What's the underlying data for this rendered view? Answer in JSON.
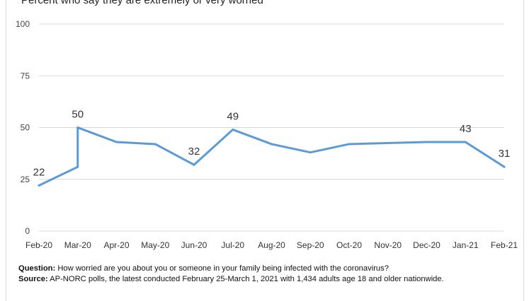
{
  "subtitle": "Percent who say they are extremely or very worried",
  "chart_data": {
    "type": "line",
    "title": "",
    "subtitle": "Percent who say they are extremely or very worried",
    "xlabel": "",
    "ylabel": "",
    "ylim": [
      0,
      100
    ],
    "yticks": [
      0,
      25,
      50,
      75,
      100
    ],
    "grid": true,
    "categories": [
      "Feb-20",
      "Mar-20",
      "Apr-20",
      "May-20",
      "Jun-20",
      "Jul-20",
      "Aug-20",
      "Sep-20",
      "Oct-20",
      "Nov-20",
      "Dec-20",
      "Jan-21",
      "Feb-21"
    ],
    "series": [
      {
        "name": "",
        "color": "#5b9bd5",
        "points": [
          {
            "x": "Feb-20",
            "y": 22
          },
          {
            "x": "Mar-20",
            "y": 31
          },
          {
            "x": "Mar-20",
            "y": 50
          },
          {
            "x": "Apr-20",
            "y": 43
          },
          {
            "x": "May-20",
            "y": 42
          },
          {
            "x": "Jun-20",
            "y": 32
          },
          {
            "x": "Jul-20",
            "y": 49
          },
          {
            "x": "Aug-20",
            "y": 42
          },
          {
            "x": "Sep-20",
            "y": 38
          },
          {
            "x": "Oct-20",
            "y": 42
          },
          {
            "x": "Dec-20",
            "y": 43
          },
          {
            "x": "Jan-21",
            "y": 43
          },
          {
            "x": "Feb-21",
            "y": 31
          }
        ]
      }
    ],
    "data_labels": [
      {
        "x": "Feb-20",
        "y": 22,
        "text": "22"
      },
      {
        "x": "Mar-20",
        "y": 50,
        "text": "50"
      },
      {
        "x": "Jun-20",
        "y": 32,
        "text": "32"
      },
      {
        "x": "Jul-20",
        "y": 49,
        "text": "49"
      },
      {
        "x": "Jan-21",
        "y": 43,
        "text": "43"
      },
      {
        "x": "Feb-21",
        "y": 31,
        "text": "31"
      }
    ]
  },
  "notes": {
    "question_label": "Question:",
    "question_text": " How worried are you about you or someone in your family being infected with the coronavirus?",
    "source_label": "Source:",
    "source_text": "  AP-NORC polls, the latest conducted February 25-March 1, 2021 with 1,434 adults age 18 and older nationwide."
  }
}
